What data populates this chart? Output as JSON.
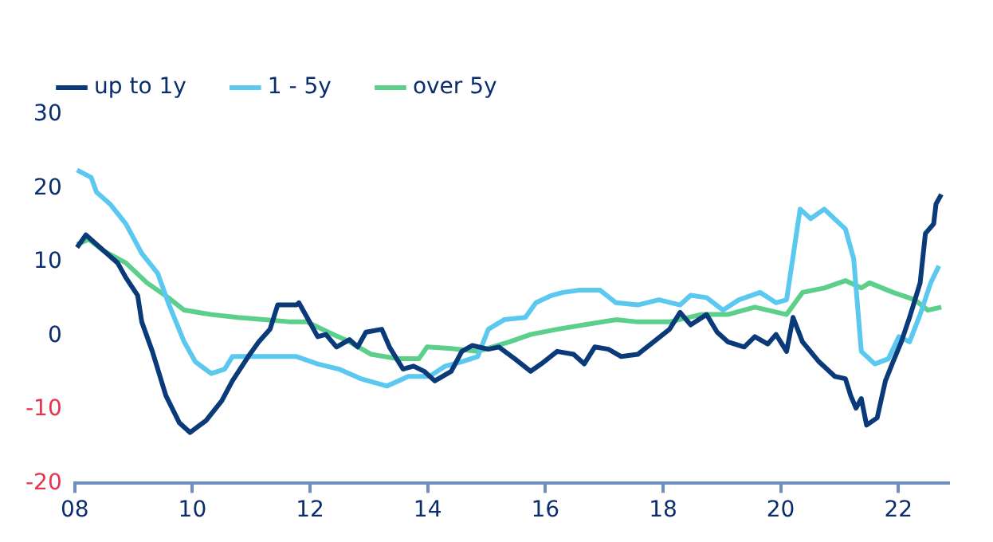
{
  "chart_data": {
    "type": "line",
    "xlim": [
      2008,
      2022.85
    ],
    "xticks": [
      {
        "value": 2008,
        "label": "08"
      },
      {
        "value": 2010,
        "label": "10"
      },
      {
        "value": 2012,
        "label": "12"
      },
      {
        "value": 2014,
        "label": "14"
      },
      {
        "value": 2016,
        "label": "16"
      },
      {
        "value": 2018,
        "label": "18"
      },
      {
        "value": 2020,
        "label": "20"
      },
      {
        "value": 2022,
        "label": "22"
      }
    ],
    "ylim": [
      -20,
      30
    ],
    "yticks": [
      -20,
      -10,
      0,
      10,
      20,
      30
    ],
    "grid": false,
    "legend": "top",
    "marker": "none",
    "line_style": "solid",
    "series": [
      {
        "name": "up to 1y",
        "color": "#0a3a7a",
        "x": [
          2008.04,
          2008.19,
          2008.5,
          2008.73,
          2008.87,
          2009.07,
          2009.14,
          2009.32,
          2009.55,
          2009.78,
          2009.96,
          2010.23,
          2010.5,
          2010.68,
          2010.95,
          2011.13,
          2011.32,
          2011.45,
          2011.77,
          2011.81,
          2011.95,
          2012.13,
          2012.27,
          2012.45,
          2012.67,
          2012.81,
          2012.95,
          2013.22,
          2013.35,
          2013.58,
          2013.76,
          2013.94,
          2014.12,
          2014.4,
          2014.58,
          2014.76,
          2015.03,
          2015.21,
          2015.48,
          2015.75,
          2015.93,
          2016.2,
          2016.48,
          2016.66,
          2016.84,
          2017.07,
          2017.29,
          2017.57,
          2017.84,
          2018.11,
          2018.29,
          2018.47,
          2018.74,
          2018.92,
          2019.1,
          2019.38,
          2019.56,
          2019.78,
          2019.92,
          2020.1,
          2020.21,
          2020.37,
          2020.65,
          2020.92,
          2021.1,
          2021.19,
          2021.28,
          2021.37,
          2021.46,
          2021.64,
          2021.78,
          2021.91,
          2022.05,
          2022.19,
          2022.37,
          2022.46,
          2022.6,
          2022.64,
          2022.73
        ],
        "values": [
          12,
          13.7,
          11.5,
          9.9,
          7.9,
          5.5,
          1.9,
          -2.1,
          -8.1,
          -11.8,
          -13.1,
          -11.5,
          -8.8,
          -6.1,
          -2.8,
          -0.8,
          0.9,
          4.2,
          4.2,
          4.5,
          2.5,
          -0.1,
          0.2,
          -1.5,
          -0.5,
          -1.5,
          0.5,
          0.9,
          -1.5,
          -4.5,
          -4.1,
          -4.8,
          -6.1,
          -4.8,
          -2.1,
          -1.3,
          -1.8,
          -1.5,
          -3.1,
          -4.8,
          -3.8,
          -2.1,
          -2.5,
          -3.8,
          -1.5,
          -1.8,
          -2.8,
          -2.5,
          -0.8,
          0.9,
          3.2,
          1.5,
          2.9,
          0.5,
          -0.8,
          -1.5,
          -0.1,
          -1.1,
          0.2,
          -2.1,
          2.5,
          -0.8,
          -3.5,
          -5.5,
          -5.8,
          -8.1,
          -9.8,
          -8.5,
          -12.1,
          -11.1,
          -6.1,
          -3.5,
          -0.8,
          2.5,
          7.2,
          13.9,
          15.2,
          17.9,
          19.2
        ]
      },
      {
        "name": "1 - 5y",
        "color": "#5bc8f0",
        "x": [
          2008.04,
          2008.28,
          2008.37,
          2008.6,
          2008.87,
          2009.14,
          2009.41,
          2009.59,
          2009.86,
          2010.05,
          2010.32,
          2010.55,
          2010.68,
          2011.04,
          2011.41,
          2011.77,
          2012.13,
          2012.49,
          2012.86,
          2013.31,
          2013.67,
          2014.03,
          2014.3,
          2014.58,
          2014.85,
          2015.03,
          2015.3,
          2015.66,
          2015.84,
          2016.11,
          2016.3,
          2016.57,
          2016.93,
          2017.2,
          2017.57,
          2017.93,
          2018.29,
          2018.47,
          2018.74,
          2019.02,
          2019.29,
          2019.65,
          2019.92,
          2020.1,
          2020.33,
          2020.51,
          2020.74,
          2021.1,
          2021.24,
          2021.37,
          2021.6,
          2021.83,
          2022.01,
          2022.19,
          2022.37,
          2022.55,
          2022.69
        ],
        "values": [
          22.5,
          21.5,
          19.5,
          17.9,
          15.2,
          11.2,
          8.5,
          4.5,
          -0.8,
          -3.5,
          -5.1,
          -4.5,
          -2.8,
          -2.8,
          -2.8,
          -2.8,
          -3.8,
          -4.5,
          -5.8,
          -6.8,
          -5.5,
          -5.5,
          -4.1,
          -3.5,
          -2.8,
          0.9,
          2.2,
          2.5,
          4.5,
          5.5,
          5.9,
          6.2,
          6.2,
          4.5,
          4.2,
          4.9,
          4.2,
          5.5,
          5.2,
          3.5,
          4.9,
          5.9,
          4.5,
          4.9,
          17.2,
          15.9,
          17.2,
          14.5,
          10.5,
          -2.1,
          -3.8,
          -3.1,
          -0.1,
          -0.8,
          2.9,
          7.2,
          9.5
        ]
      },
      {
        "name": "over 5y",
        "color": "#5ccf8a",
        "x": [
          2008.04,
          2008.24,
          2008.5,
          2008.87,
          2009.23,
          2009.59,
          2009.86,
          2010.32,
          2010.77,
          2011.22,
          2011.68,
          2011.95,
          2012.31,
          2012.67,
          2013.04,
          2013.49,
          2013.85,
          2013.99,
          2014.4,
          2014.85,
          2015.39,
          2015.75,
          2016.2,
          2016.66,
          2017.2,
          2017.57,
          2018.11,
          2018.65,
          2019.1,
          2019.56,
          2020.1,
          2020.37,
          2020.74,
          2021.1,
          2021.37,
          2021.51,
          2021.91,
          2022.28,
          2022.5,
          2022.73
        ],
        "values": [
          12.4,
          13.1,
          11.5,
          9.9,
          7.2,
          5.2,
          3.5,
          2.9,
          2.5,
          2.2,
          1.9,
          1.9,
          0.5,
          -0.8,
          -2.5,
          -3.1,
          -3.1,
          -1.5,
          -1.7,
          -2.1,
          -0.8,
          0.2,
          0.9,
          1.5,
          2.2,
          1.9,
          1.9,
          2.9,
          2.9,
          3.9,
          2.9,
          5.9,
          6.5,
          7.5,
          6.5,
          7.2,
          5.9,
          4.9,
          3.5,
          3.9
        ]
      }
    ]
  }
}
